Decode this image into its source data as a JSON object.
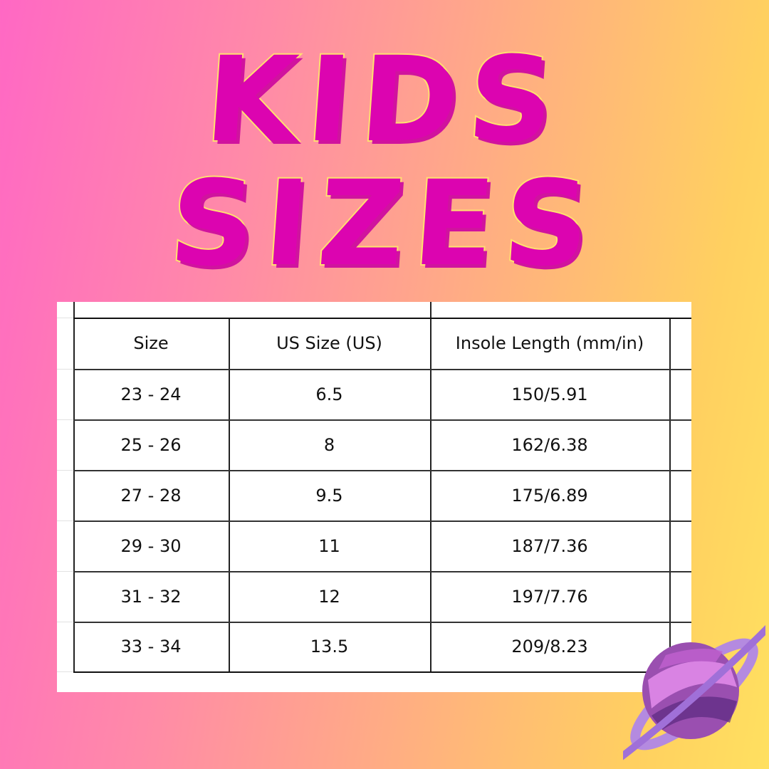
{
  "title": {
    "line1": "KIDS",
    "line2": "SIZES"
  },
  "table": {
    "headers": [
      "Size",
      "US Size (US)",
      "Insole Length (mm/in)",
      ""
    ],
    "rows": [
      [
        "23 - 24",
        "6.5",
        "150/5.91"
      ],
      [
        "25 - 26",
        "8",
        "162/6.38"
      ],
      [
        "27 - 28",
        "9.5",
        "175/6.89"
      ],
      [
        "29 - 30",
        "11",
        "187/7.36"
      ],
      [
        "31 - 32",
        "12",
        "197/7.76"
      ],
      [
        "33 - 34",
        "13.5",
        "209/8.23"
      ]
    ]
  },
  "colors": {
    "title_fill": "#dc04b0",
    "title_outline": "#ffe070"
  },
  "decor": {
    "icon": "planet-icon"
  }
}
